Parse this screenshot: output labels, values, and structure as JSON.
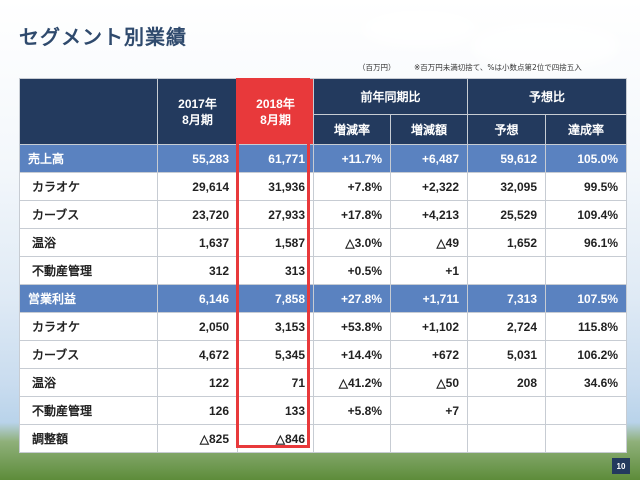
{
  "title": "セグメント別業績",
  "unit_note": "（百万円）",
  "rounding_note": "※百万円未満切捨て、%は小数点第2位で四捨五入",
  "headers": {
    "col_2017": "2017年\n8月期",
    "col_2018": "2018年\n8月期",
    "group_yoy": "前年同期比",
    "group_forecast": "予想比",
    "yoy_rate": "増減率",
    "yoy_amount": "増減額",
    "forecast": "予想",
    "achievement": "達成率"
  },
  "rows": [
    {
      "type": "section",
      "name": "売上高",
      "v2017": "55,283",
      "v2018": "61,771",
      "rate": "+11.7%",
      "amount": "+6,487",
      "forecast": "59,612",
      "achievement": "105.0%"
    },
    {
      "type": "item",
      "name": "カラオケ",
      "v2017": "29,614",
      "v2018": "31,936",
      "rate": "+7.8%",
      "amount": "+2,322",
      "forecast": "32,095",
      "achievement": "99.5%"
    },
    {
      "type": "item",
      "name": "カーブス",
      "v2017": "23,720",
      "v2018": "27,933",
      "rate": "+17.8%",
      "amount": "+4,213",
      "forecast": "25,529",
      "achievement": "109.4%"
    },
    {
      "type": "item",
      "name": "温浴",
      "v2017": "1,637",
      "v2018": "1,587",
      "rate": "△3.0%",
      "amount": "△49",
      "forecast": "1,652",
      "achievement": "96.1%"
    },
    {
      "type": "item",
      "name": "不動産管理",
      "v2017": "312",
      "v2018": "313",
      "rate": "+0.5%",
      "amount": "+1",
      "forecast": "",
      "achievement": ""
    },
    {
      "type": "section",
      "name": "営業利益",
      "v2017": "6,146",
      "v2018": "7,858",
      "rate": "+27.8%",
      "amount": "+1,711",
      "forecast": "7,313",
      "achievement": "107.5%"
    },
    {
      "type": "item",
      "name": "カラオケ",
      "v2017": "2,050",
      "v2018": "3,153",
      "rate": "+53.8%",
      "amount": "+1,102",
      "forecast": "2,724",
      "achievement": "115.8%"
    },
    {
      "type": "item",
      "name": "カーブス",
      "v2017": "4,672",
      "v2018": "5,345",
      "rate": "+14.4%",
      "amount": "+672",
      "forecast": "5,031",
      "achievement": "106.2%"
    },
    {
      "type": "item",
      "name": "温浴",
      "v2017": "122",
      "v2018": "71",
      "rate": "△41.2%",
      "amount": "△50",
      "forecast": "208",
      "achievement": "34.6%"
    },
    {
      "type": "item",
      "name": "不動産管理",
      "v2017": "126",
      "v2018": "133",
      "rate": "+5.8%",
      "amount": "+7",
      "forecast": "",
      "achievement": ""
    },
    {
      "type": "item",
      "name": "調整額",
      "v2017": "△825",
      "v2018": "△846",
      "rate": "",
      "amount": "",
      "forecast": "",
      "achievement": ""
    }
  ],
  "page_number": "10",
  "colors": {
    "navy": "#233a5e",
    "section_blue": "#5a82c0",
    "highlight_red": "#e8393b"
  }
}
